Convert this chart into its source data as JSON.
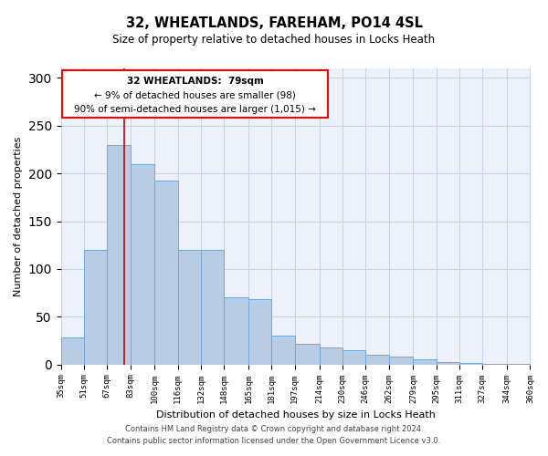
{
  "title": "32, WHEATLANDS, FAREHAM, PO14 4SL",
  "subtitle": "Size of property relative to detached houses in Locks Heath",
  "xlabel": "Distribution of detached houses by size in Locks Heath",
  "ylabel": "Number of detached properties",
  "footer_line1": "Contains HM Land Registry data © Crown copyright and database right 2024.",
  "footer_line2": "Contains public sector information licensed under the Open Government Licence v3.0.",
  "annotation_line1": "32 WHEATLANDS:  79sqm",
  "annotation_line2": "← 9% of detached houses are smaller (98)",
  "annotation_line3": "90% of semi-detached houses are larger (1,015) →",
  "bar_color": "#b8cce4",
  "bar_edge_color": "#6fa8dc",
  "grid_color": "#c8d4e8",
  "bg_color": "#edf2fa",
  "redline_color": "#cc0000",
  "redline_x": 79,
  "bin_edges": [
    35,
    51,
    67,
    83,
    100,
    116,
    132,
    148,
    165,
    181,
    197,
    214,
    230,
    246,
    262,
    279,
    295,
    311,
    327,
    344,
    360
  ],
  "bin_labels": [
    "35sqm",
    "51sqm",
    "67sqm",
    "83sqm",
    "100sqm",
    "116sqm",
    "132sqm",
    "148sqm",
    "165sqm",
    "181sqm",
    "197sqm",
    "214sqm",
    "230sqm",
    "246sqm",
    "262sqm",
    "279sqm",
    "295sqm",
    "311sqm",
    "327sqm",
    "344sqm",
    "360sqm"
  ],
  "bar_heights": [
    28,
    120,
    230,
    210,
    193,
    120,
    120,
    70,
    68,
    30,
    22,
    18,
    15,
    10,
    8,
    5,
    3,
    2,
    1,
    1
  ],
  "ylim": [
    0,
    310
  ],
  "yticks": [
    0,
    50,
    100,
    150,
    200,
    250,
    300
  ]
}
